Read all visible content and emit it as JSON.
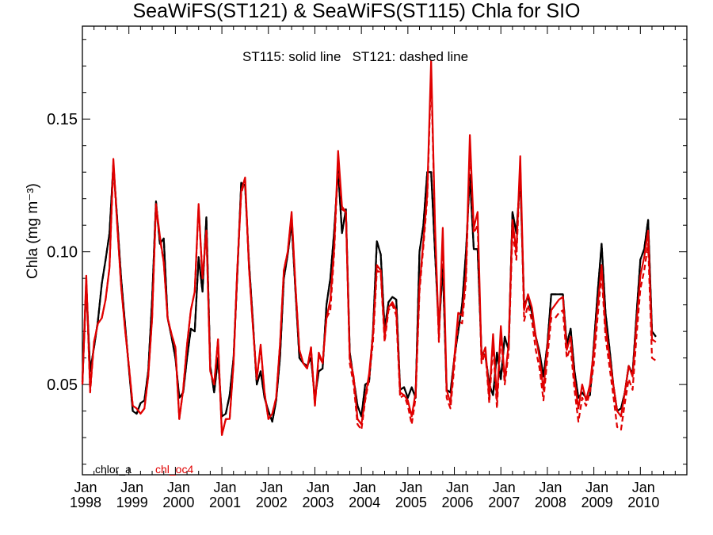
{
  "chart_data": {
    "type": "line",
    "title": "SeaWiFS(ST121) & SeaWiFS(ST115)  Chla for SIO",
    "annotation": "ST115: solid line   ST121: dashed line",
    "ylabel": "Chla (mg m⁻³)",
    "xlabel": "",
    "xlim": [
      "1998-01",
      "2011-01"
    ],
    "ylim": [
      0.016,
      0.185
    ],
    "yticks": [
      0.05,
      0.1,
      0.15
    ],
    "ytick_labels": [
      "0.05",
      "0.10",
      "0.15"
    ],
    "xtick_labels": [
      {
        "month": "Jan",
        "year": "1998"
      },
      {
        "month": "Jan",
        "year": "1999"
      },
      {
        "month": "Jan",
        "year": "2000"
      },
      {
        "month": "Jan",
        "year": "2001"
      },
      {
        "month": "Jan",
        "year": "2002"
      },
      {
        "month": "Jan",
        "year": "2003"
      },
      {
        "month": "Jan",
        "year": "2004"
      },
      {
        "month": "Jan",
        "year": "2005"
      },
      {
        "month": "Jan",
        "year": "2006"
      },
      {
        "month": "Jan",
        "year": "2007"
      },
      {
        "month": "Jan",
        "year": "2008"
      },
      {
        "month": "Jan",
        "year": "2009"
      },
      {
        "month": "Jan",
        "year": "2010"
      }
    ],
    "legend_placement": "bottom-left",
    "legend": [
      {
        "name": "chlor_a",
        "color": "#000000"
      },
      {
        "name": "chl_oc4",
        "color": "#e00000"
      }
    ],
    "x_start": "1998-01",
    "x_step": "1 month",
    "series": [
      {
        "name": "chlor_a",
        "style": "solid",
        "product": "ST115",
        "color": "#000000",
        "values": [
          0.051,
          0.088,
          0.055,
          0.064,
          0.074,
          0.088,
          0.097,
          0.107,
          0.133,
          0.112,
          0.09,
          0.073,
          0.056,
          0.04,
          0.039,
          0.043,
          0.044,
          0.055,
          0.082,
          0.119,
          0.103,
          0.105,
          0.075,
          0.068,
          0.06,
          0.045,
          0.047,
          0.06,
          0.071,
          0.07,
          0.098,
          0.085,
          0.113,
          0.057,
          0.047,
          0.06,
          0.038,
          0.039,
          0.046,
          0.06,
          0.092,
          0.126,
          0.125,
          0.096,
          0.074,
          0.05,
          0.055,
          0.045,
          0.04,
          0.036,
          0.044,
          0.06,
          0.09,
          0.099,
          0.111,
          0.085,
          0.06,
          0.058,
          0.057,
          0.06,
          0.045,
          0.055,
          0.056,
          0.08,
          0.09,
          0.108,
          0.131,
          0.107,
          0.116,
          0.062,
          0.052,
          0.042,
          0.038,
          0.05,
          0.051,
          0.07,
          0.104,
          0.099,
          0.071,
          0.081,
          0.083,
          0.082,
          0.048,
          0.049,
          0.045,
          0.049,
          0.045,
          0.1,
          0.11,
          0.13,
          0.13,
          0.1,
          0.07,
          0.095,
          0.048,
          0.047,
          0.06,
          0.07,
          0.08,
          0.1,
          0.129,
          0.101,
          0.101,
          0.062,
          0.061,
          0.05,
          0.046,
          0.062,
          0.052,
          0.068,
          0.063,
          0.115,
          0.107,
          0.128,
          0.08,
          0.083,
          0.077,
          0.068,
          0.062,
          0.053,
          0.065,
          0.084,
          0.084,
          0.084,
          0.084,
          0.065,
          0.071,
          0.055,
          0.045,
          0.047,
          0.045,
          0.046,
          0.065,
          0.085,
          0.103,
          0.077,
          0.064,
          0.05,
          0.04,
          0.041,
          0.047,
          0.057,
          0.054,
          0.076,
          0.097,
          0.101,
          0.112,
          0.07,
          0.068
        ]
      },
      {
        "name": "chl_oc4",
        "style": "solid",
        "product": "ST115",
        "color": "#e00000",
        "values": [
          0.05,
          0.091,
          0.048,
          0.066,
          0.073,
          0.075,
          0.082,
          0.094,
          0.135,
          0.11,
          0.087,
          0.071,
          0.057,
          0.042,
          0.041,
          0.039,
          0.041,
          0.053,
          0.075,
          0.118,
          0.106,
          0.096,
          0.075,
          0.069,
          0.064,
          0.037,
          0.048,
          0.065,
          0.078,
          0.085,
          0.118,
          0.09,
          0.108,
          0.055,
          0.05,
          0.067,
          0.031,
          0.037,
          0.037,
          0.058,
          0.094,
          0.123,
          0.128,
          0.094,
          0.072,
          0.052,
          0.065,
          0.047,
          0.037,
          0.039,
          0.045,
          0.065,
          0.093,
          0.1,
          0.115,
          0.087,
          0.063,
          0.058,
          0.056,
          0.064,
          0.042,
          0.062,
          0.058,
          0.075,
          0.082,
          0.102,
          0.138,
          0.117,
          0.115,
          0.06,
          0.053,
          0.037,
          0.035,
          0.045,
          0.054,
          0.069,
          0.095,
          0.093,
          0.068,
          0.079,
          0.081,
          0.078,
          0.047,
          0.046,
          0.044,
          0.038,
          0.047,
          0.087,
          0.104,
          0.122,
          0.172,
          0.11,
          0.068,
          0.109,
          0.048,
          0.043,
          0.06,
          0.077,
          0.076,
          0.092,
          0.144,
          0.109,
          0.115,
          0.06,
          0.064,
          0.045,
          0.069,
          0.044,
          0.072,
          0.052,
          0.065,
          0.112,
          0.1,
          0.136,
          0.078,
          0.084,
          0.079,
          0.068,
          0.06,
          0.048,
          0.064,
          0.078,
          0.08,
          0.082,
          0.083,
          0.063,
          0.068,
          0.052,
          0.041,
          0.05,
          0.044,
          0.05,
          0.063,
          0.08,
          0.095,
          0.072,
          0.061,
          0.05,
          0.04,
          0.038,
          0.047,
          0.057,
          0.053,
          0.073,
          0.091,
          0.098,
          0.108,
          0.067,
          0.066
        ]
      },
      {
        "name": "chlor_a",
        "style": "dashed",
        "product": "ST121",
        "color": "#000000",
        "values": [
          0.051,
          0.088,
          0.055,
          0.064,
          0.074,
          0.088,
          0.097,
          0.107,
          0.133,
          0.112,
          0.09,
          0.073,
          0.056,
          0.04,
          0.039,
          0.043,
          0.044,
          0.055,
          0.082,
          0.119,
          0.103,
          0.105,
          0.075,
          0.068,
          0.06,
          0.045,
          0.047,
          0.06,
          0.071,
          0.07,
          0.098,
          0.085,
          0.113,
          0.057,
          0.047,
          0.06,
          0.038,
          0.039,
          0.046,
          0.06,
          0.092,
          0.126,
          0.125,
          0.096,
          0.074,
          0.05,
          0.055,
          0.045,
          0.04,
          0.036,
          0.044,
          0.06,
          0.09,
          0.099,
          0.111,
          0.085,
          0.06,
          0.058,
          0.057,
          0.06,
          0.045,
          0.055,
          0.056,
          0.08,
          0.09,
          0.108,
          0.131,
          0.107,
          0.116,
          0.062,
          0.052,
          0.042,
          0.038,
          0.05,
          0.051,
          0.07,
          0.104,
          0.099,
          0.071,
          0.081,
          0.083,
          0.082,
          0.048,
          0.049,
          0.045,
          0.049,
          0.045,
          0.1,
          0.11,
          0.13,
          0.13,
          0.1,
          0.07,
          0.095,
          0.048,
          0.047,
          0.06,
          0.07,
          0.08,
          0.1,
          0.129,
          0.101,
          0.101,
          0.062,
          0.061,
          0.05,
          0.046,
          0.062,
          0.052,
          0.068,
          0.063,
          0.115,
          0.107,
          0.128,
          0.08,
          0.083,
          0.077,
          0.068,
          0.062,
          0.053,
          0.065,
          0.084,
          0.084,
          0.084,
          0.084,
          0.065,
          0.071,
          0.055,
          0.045,
          0.047,
          0.045,
          0.046,
          0.065,
          0.085,
          0.103,
          0.077,
          0.064,
          0.05,
          0.04,
          0.041,
          0.047,
          0.057,
          0.054,
          0.076,
          0.097,
          0.101,
          0.112,
          0.07,
          0.068
        ]
      },
      {
        "name": "chl_oc4",
        "style": "dashed",
        "product": "ST121",
        "color": "#e00000",
        "values": [
          0.05,
          0.09,
          0.047,
          0.066,
          0.073,
          0.075,
          0.082,
          0.094,
          0.133,
          0.11,
          0.087,
          0.071,
          0.057,
          0.042,
          0.041,
          0.039,
          0.041,
          0.053,
          0.075,
          0.117,
          0.105,
          0.096,
          0.075,
          0.069,
          0.064,
          0.037,
          0.048,
          0.065,
          0.078,
          0.085,
          0.117,
          0.09,
          0.108,
          0.055,
          0.05,
          0.067,
          0.031,
          0.037,
          0.037,
          0.058,
          0.094,
          0.122,
          0.127,
          0.094,
          0.072,
          0.052,
          0.064,
          0.047,
          0.037,
          0.039,
          0.045,
          0.065,
          0.093,
          0.1,
          0.114,
          0.087,
          0.063,
          0.058,
          0.056,
          0.064,
          0.042,
          0.061,
          0.058,
          0.075,
          0.078,
          0.1,
          0.135,
          0.116,
          0.115,
          0.058,
          0.05,
          0.035,
          0.033,
          0.044,
          0.052,
          0.066,
          0.093,
          0.092,
          0.066,
          0.078,
          0.08,
          0.076,
          0.045,
          0.046,
          0.042,
          0.035,
          0.045,
          0.085,
          0.102,
          0.12,
          0.168,
          0.108,
          0.066,
          0.106,
          0.045,
          0.041,
          0.057,
          0.074,
          0.073,
          0.089,
          0.14,
          0.107,
          0.11,
          0.058,
          0.062,
          0.043,
          0.065,
          0.041,
          0.069,
          0.05,
          0.062,
          0.108,
          0.097,
          0.133,
          0.074,
          0.08,
          0.074,
          0.063,
          0.056,
          0.044,
          0.06,
          0.075,
          0.075,
          0.077,
          0.078,
          0.06,
          0.064,
          0.048,
          0.036,
          0.045,
          0.042,
          0.047,
          0.058,
          0.076,
          0.092,
          0.068,
          0.057,
          0.046,
          0.034,
          0.033,
          0.043,
          0.052,
          0.048,
          0.068,
          0.086,
          0.093,
          0.103,
          0.06,
          0.059
        ]
      }
    ]
  }
}
